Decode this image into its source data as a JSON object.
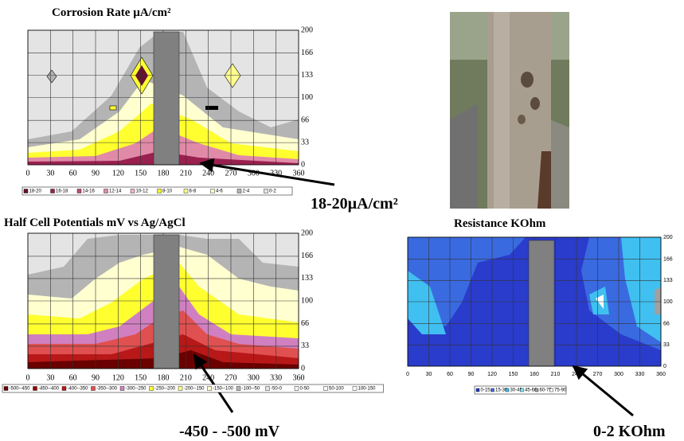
{
  "panels": [
    {
      "title": "Corrosion Rate µA/cm²",
      "x_ticks": [
        0,
        30,
        60,
        90,
        120,
        150,
        180,
        210,
        240,
        270,
        300,
        330,
        360
      ],
      "y_ticks": [
        200,
        166,
        133,
        100,
        66,
        33,
        0
      ],
      "legend": [
        "18-20",
        "16-18",
        "14-16",
        "12-14",
        "10-12",
        "8-10",
        "6-8",
        "4-6",
        "2-4",
        "0-2"
      ],
      "legend_colors": [
        "#6b1030",
        "#9a2050",
        "#c04a70",
        "#e08aa8",
        "#f0b8c8",
        "#ffff30",
        "#ffff90",
        "#ffffd0",
        "#b4b4b4",
        "#e4e4e4"
      ]
    },
    {
      "title": "Half Cell Potentials mV vs Ag/AgCl",
      "x_ticks": [
        0,
        30,
        60,
        90,
        120,
        150,
        180,
        210,
        240,
        270,
        300,
        330,
        360
      ],
      "y_ticks": [
        200,
        166,
        133,
        100,
        66,
        33,
        0
      ],
      "legend": [
        "-500--450",
        "-450--400",
        "-400--350",
        "-350--300",
        "-300--250",
        "-250--200",
        "-200--150",
        "-150--100",
        "-100--50",
        "-50-0",
        "0-50",
        "50-100",
        "100-150"
      ],
      "legend_colors": [
        "#6a0000",
        "#900000",
        "#b81818",
        "#e05050",
        "#d080c0",
        "#ffff30",
        "#ffff90",
        "#ffffd0",
        "#b4b4b4",
        "#e4e4e4",
        "#f4f4f4",
        "#fafafa",
        "#ffffff"
      ]
    },
    {
      "title": "Resistance KOhm",
      "x_ticks": [
        0,
        30,
        60,
        90,
        120,
        150,
        180,
        210,
        240,
        270,
        300,
        330,
        360
      ],
      "y_ticks": [
        200,
        166,
        133,
        100,
        66,
        33,
        0
      ],
      "legend": [
        "0-15",
        "15-30",
        "30-45",
        "45-60",
        "60-75",
        "75-90"
      ],
      "legend_colors": [
        "#2a3ccc",
        "#3a6ae0",
        "#40c0f0",
        "#70f0f8",
        "#a0a0a0",
        "#ffffff"
      ]
    }
  ],
  "annotations": [
    "18-20µA/cm²",
    "-450 - -500 mV",
    "0-2 KOhm"
  ]
}
